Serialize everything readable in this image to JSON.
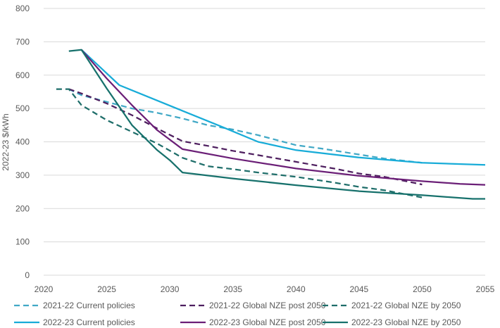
{
  "chart_data": {
    "type": "line",
    "ylabel": "2022-23 $/kWh",
    "xlabel": "",
    "xlim": [
      2020,
      2055
    ],
    "ylim": [
      0,
      800
    ],
    "x_ticks": [
      2020,
      2025,
      2030,
      2035,
      2040,
      2045,
      2050,
      2055
    ],
    "y_ticks": [
      0,
      100,
      200,
      300,
      400,
      500,
      600,
      700,
      800
    ],
    "grid": "horizontal",
    "legend_position": "bottom",
    "series": [
      {
        "name": "2021-22 Current policies",
        "color": "#41a8c6",
        "dash": "dashed",
        "points": [
          [
            2022,
            558
          ],
          [
            2023,
            540
          ],
          [
            2025,
            520
          ],
          [
            2027,
            500
          ],
          [
            2029,
            487
          ],
          [
            2031,
            470
          ],
          [
            2033,
            450
          ],
          [
            2035,
            437
          ],
          [
            2037,
            420
          ],
          [
            2040,
            390
          ],
          [
            2042,
            380
          ],
          [
            2045,
            362
          ],
          [
            2047,
            350
          ],
          [
            2050,
            337
          ]
        ]
      },
      {
        "name": "2021-22 Global NZE post 2050",
        "color": "#4e1f5f",
        "dash": "dashed",
        "points": [
          [
            2022,
            558
          ],
          [
            2023,
            545
          ],
          [
            2025,
            515
          ],
          [
            2027,
            480
          ],
          [
            2029,
            440
          ],
          [
            2031,
            402
          ],
          [
            2033,
            388
          ],
          [
            2035,
            373
          ],
          [
            2037,
            360
          ],
          [
            2040,
            340
          ],
          [
            2043,
            320
          ],
          [
            2045,
            305
          ],
          [
            2047,
            295
          ],
          [
            2050,
            272
          ]
        ]
      },
      {
        "name": "2021-22 Global NZE by 2050",
        "color": "#1f6e6a",
        "dash": "dashed",
        "points": [
          [
            2021,
            558
          ],
          [
            2022,
            558
          ],
          [
            2023,
            510
          ],
          [
            2025,
            465
          ],
          [
            2027,
            430
          ],
          [
            2029,
            395
          ],
          [
            2031,
            352
          ],
          [
            2033,
            327
          ],
          [
            2035,
            318
          ],
          [
            2037,
            308
          ],
          [
            2040,
            295
          ],
          [
            2043,
            278
          ],
          [
            2045,
            265
          ],
          [
            2047,
            255
          ],
          [
            2050,
            233
          ]
        ]
      },
      {
        "name": "2022-23 Current policies",
        "color": "#18acd8",
        "dash": "solid",
        "points": [
          [
            2023,
            676
          ],
          [
            2026,
            570
          ],
          [
            2031,
            493
          ],
          [
            2034,
            447
          ],
          [
            2037,
            400
          ],
          [
            2040,
            375
          ],
          [
            2045,
            353
          ],
          [
            2050,
            337
          ],
          [
            2055,
            331
          ]
        ]
      },
      {
        "name": "2022-23 Global NZE post 2050",
        "color": "#6b1f77",
        "dash": "solid",
        "points": [
          [
            2023,
            676
          ],
          [
            2025,
            590
          ],
          [
            2027,
            510
          ],
          [
            2029,
            435
          ],
          [
            2031,
            378
          ],
          [
            2035,
            350
          ],
          [
            2040,
            320
          ],
          [
            2045,
            298
          ],
          [
            2050,
            282
          ],
          [
            2053,
            274
          ],
          [
            2055,
            271
          ]
        ]
      },
      {
        "name": "2022-23 Global NZE by 2050",
        "color": "#17716c",
        "dash": "solid",
        "points": [
          [
            2022,
            672
          ],
          [
            2023,
            676
          ],
          [
            2025,
            560
          ],
          [
            2027,
            450
          ],
          [
            2029,
            375
          ],
          [
            2030,
            345
          ],
          [
            2031,
            308
          ],
          [
            2035,
            290
          ],
          [
            2040,
            270
          ],
          [
            2045,
            252
          ],
          [
            2050,
            240
          ],
          [
            2054,
            229
          ],
          [
            2055,
            229
          ]
        ]
      }
    ]
  }
}
